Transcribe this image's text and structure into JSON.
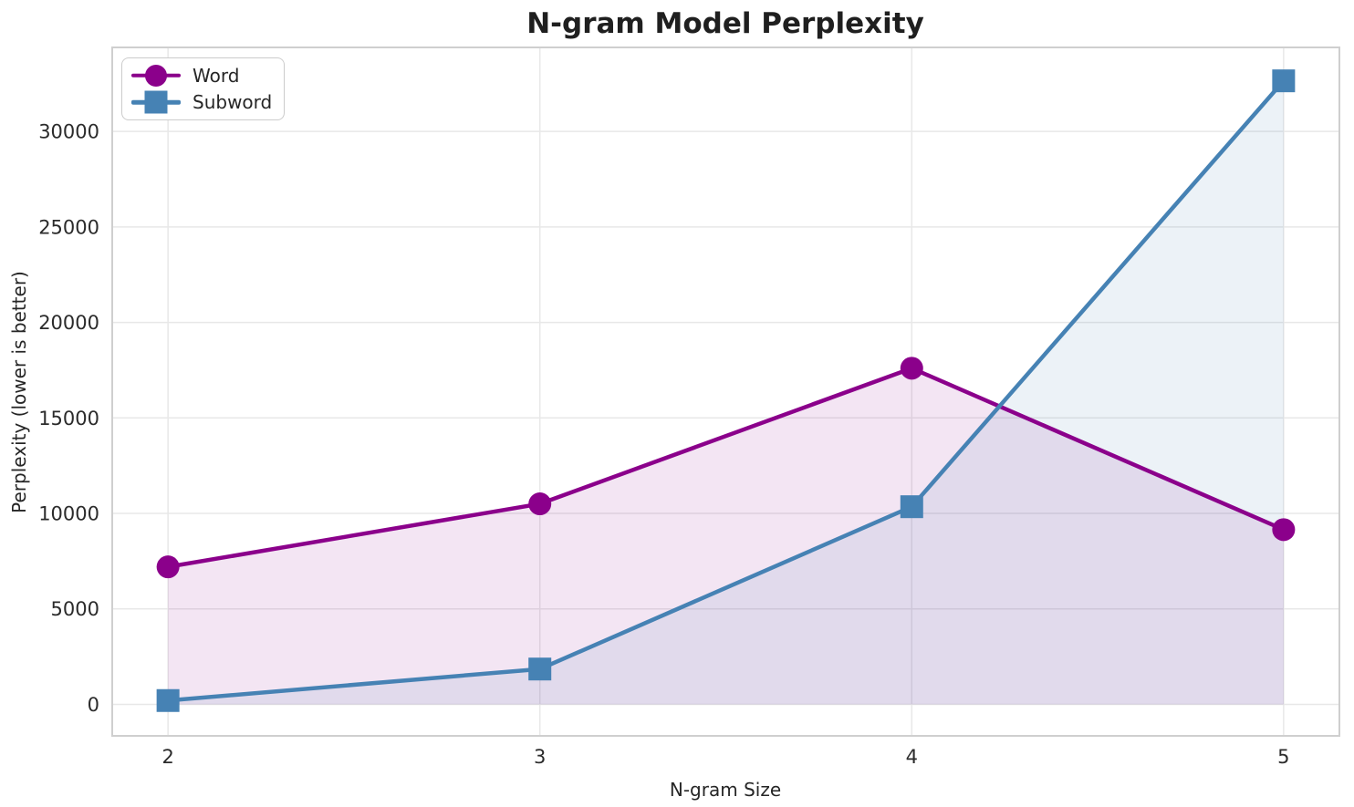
{
  "chart_data": {
    "type": "line",
    "title": "N-gram Model Perplexity",
    "xlabel": "N-gram Size",
    "ylabel": "Perplexity (lower is better)",
    "x": [
      2,
      3,
      4,
      5
    ],
    "x_tick_labels": [
      "2",
      "3",
      "4",
      "5"
    ],
    "y_ticks": [
      0,
      5000,
      10000,
      15000,
      20000,
      25000,
      30000
    ],
    "xlim": [
      1.85,
      5.15
    ],
    "ylim": [
      -1650,
      34400
    ],
    "grid": true,
    "legend_position": "upper-left",
    "series": [
      {
        "name": "Word",
        "marker": "circle",
        "color": "#8B008B",
        "fill_to_zero": true,
        "fill_opacity": 0.1,
        "values": [
          7200,
          10500,
          17600,
          9150
        ]
      },
      {
        "name": "Subword",
        "marker": "square",
        "color": "#4682B4",
        "fill_to_zero": true,
        "fill_opacity": 0.1,
        "values": [
          200,
          1850,
          10350,
          32650
        ]
      }
    ]
  },
  "style_colors": {
    "grid": "#e8e8e8",
    "spine": "#cfcfcf",
    "background": "#ffffff",
    "text": "#262626"
  }
}
